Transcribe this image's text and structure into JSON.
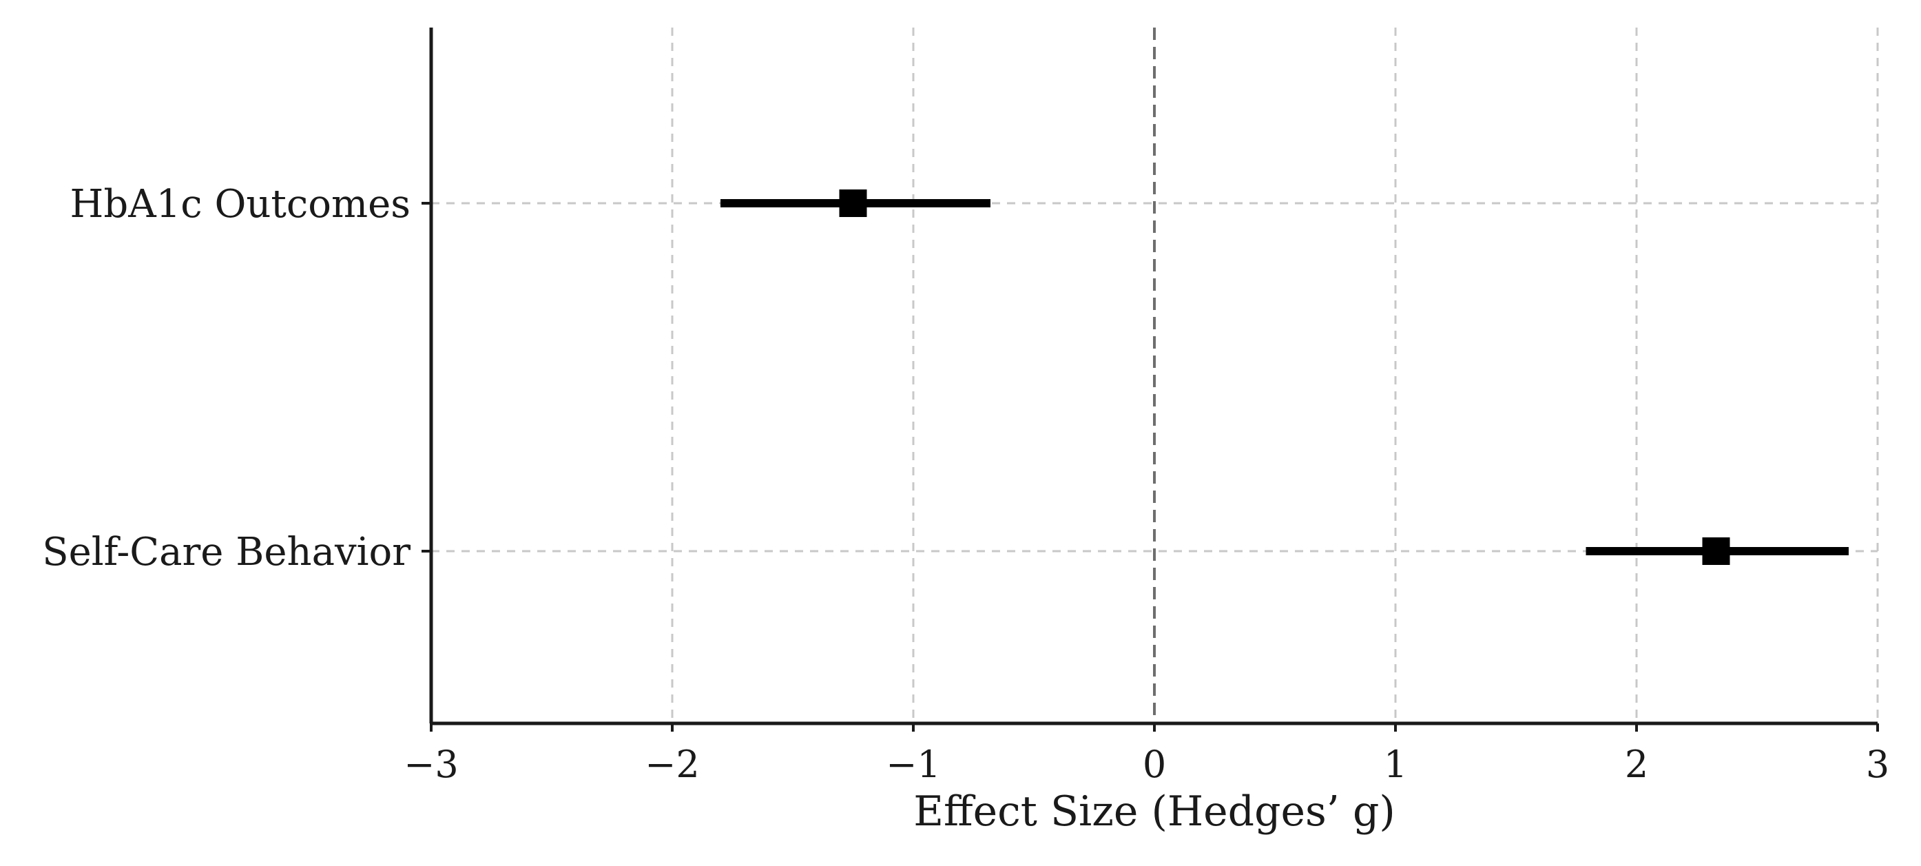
{
  "chart_data": {
    "type": "forest",
    "xlabel": "Effect Size (Hedges’ g)",
    "ylabel": "",
    "xlim": [
      -3,
      3
    ],
    "xticks": [
      -3,
      -2,
      -1,
      0,
      1,
      2,
      3
    ],
    "xtick_labels": [
      "−3",
      "−2",
      "−1",
      "0",
      "1",
      "2",
      "3"
    ],
    "reference_line": 0,
    "grid": true,
    "grid_style": "dashed",
    "marker": "square",
    "colors": {
      "marker": "#000000",
      "errorbar": "#000000",
      "grid": "#c8c8c8",
      "axis": "#1a1a1a",
      "reference": "#6e6e6e"
    },
    "series": [
      {
        "category": "HbA1c Outcomes",
        "estimate": -1.25,
        "ci_lower": -1.8,
        "ci_upper": -0.68
      },
      {
        "category": "Self-Care Behavior",
        "estimate": 2.33,
        "ci_lower": 1.79,
        "ci_upper": 2.88
      }
    ]
  }
}
